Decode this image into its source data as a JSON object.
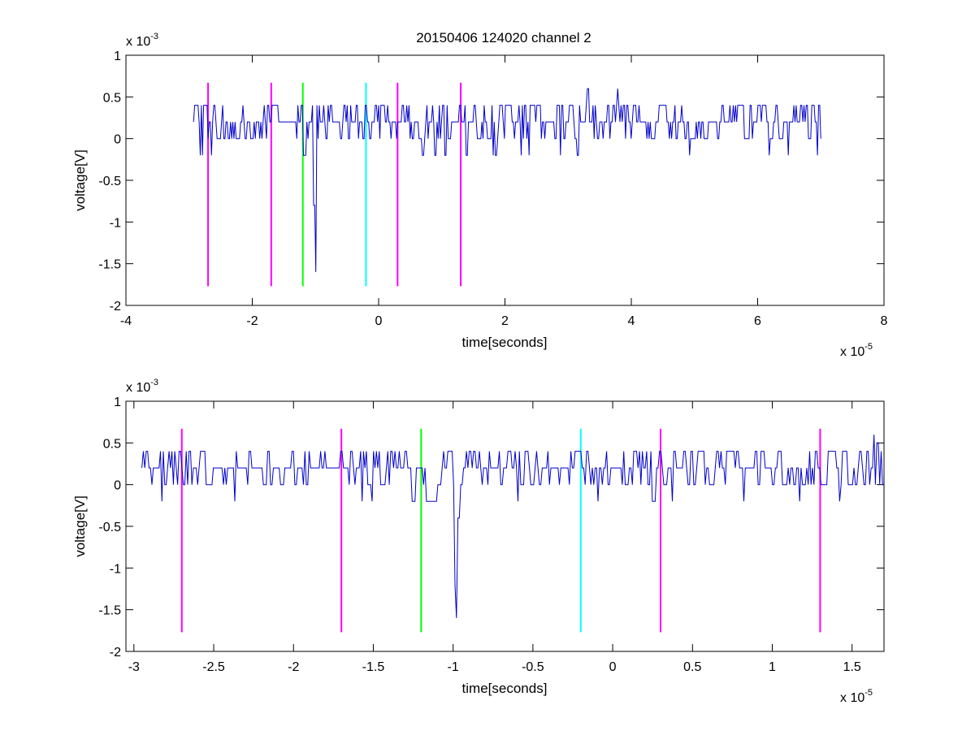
{
  "figure": {
    "title": "20150406 124020 channel 2"
  },
  "chart_data": [
    {
      "type": "line",
      "title": "20150406 124020 channel 2",
      "xlabel": "time[seconds]",
      "ylabel": "voltage[V]",
      "x_multiplier": "x 10",
      "x_exponent": "-5",
      "y_multiplier": "x 10",
      "y_exponent": "-3",
      "xlim": [
        -4e-05,
        8e-05
      ],
      "ylim": [
        -0.002,
        0.001
      ],
      "x_ticks": [
        -4e-05,
        -2e-05,
        0,
        2e-05,
        4e-05,
        6e-05,
        8e-05
      ],
      "x_tick_labels": [
        "-4",
        "-2",
        "0",
        "2",
        "4",
        "6",
        "8"
      ],
      "y_ticks": [
        0.001,
        0.0005,
        0,
        -0.0005,
        -0.001,
        -0.0015,
        -0.002
      ],
      "y_tick_labels": [
        "1",
        "0.5",
        "0",
        "-0.5",
        "-1",
        "-1.5",
        "-2"
      ],
      "grid": false,
      "signal": {
        "color": "#0000cc",
        "x_start": -2.93e-05,
        "x_end": 7e-05,
        "baseline": 0.0002,
        "noise_levels": [
          0,
          0.0002,
          0.0004
        ],
        "spikes": [
          {
            "x": -1e-05,
            "y": -0.0016
          },
          {
            "x": -1.02e-05,
            "y": -0.0008
          },
          {
            "x": -1.18e-05,
            "y": -0.0002
          },
          {
            "x": 3.78e-05,
            "y": 0.0006
          },
          {
            "x": 3.3e-05,
            "y": 0.0006
          }
        ]
      },
      "markers": [
        {
          "x": -2.7e-05,
          "color": "#ff00ff"
        },
        {
          "x": -1.7e-05,
          "color": "#ff00ff"
        },
        {
          "x": -1.2e-05,
          "color": "#00ff00"
        },
        {
          "x": -2e-06,
          "color": "#00ffff"
        },
        {
          "x": 3e-06,
          "color": "#ff00ff"
        },
        {
          "x": 1.3e-05,
          "color": "#ff00ff"
        }
      ],
      "marker_range": [
        -0.00177,
        0.00067
      ]
    },
    {
      "type": "line",
      "title": "",
      "xlabel": "time[seconds]",
      "ylabel": "voltage[V]",
      "x_multiplier": "x 10",
      "x_exponent": "-5",
      "y_multiplier": "x 10",
      "y_exponent": "-3",
      "xlim": [
        -3.05e-05,
        1.7e-05
      ],
      "ylim": [
        -0.002,
        0.001
      ],
      "x_ticks": [
        -3e-05,
        -2.5e-05,
        -2e-05,
        -1.5e-05,
        -1e-05,
        -5e-06,
        0,
        5e-06,
        1e-05,
        1.5e-05
      ],
      "x_tick_labels": [
        "-3",
        "-2.5",
        "-2",
        "-1.5",
        "-1",
        "-0.5",
        "0",
        "0.5",
        "1",
        "1.5"
      ],
      "y_ticks": [
        0.001,
        0.0005,
        0,
        -0.0005,
        -0.001,
        -0.0015,
        -0.002
      ],
      "y_tick_labels": [
        "1",
        "0.5",
        "0",
        "-0.5",
        "-1",
        "-1.5",
        "-2"
      ],
      "grid": false,
      "signal": {
        "color": "#0000cc",
        "x_start": -2.95e-05,
        "x_end": 1.7e-05,
        "baseline": 0.0002,
        "noise_levels": [
          0,
          0.0002,
          0.0004
        ],
        "spikes": [
          {
            "x": -9.8e-06,
            "y": -0.0016
          },
          {
            "x": -9.9e-06,
            "y": -0.0012
          },
          {
            "x": -9.7e-06,
            "y": -0.0004
          },
          {
            "x": -1.17e-05,
            "y": -0.0002
          },
          {
            "x": 1.64e-05,
            "y": 0.0006
          },
          {
            "x": 1.66e-05,
            "y": 0.0005
          }
        ]
      },
      "markers": [
        {
          "x": -2.7e-05,
          "color": "#ff00ff"
        },
        {
          "x": -1.7e-05,
          "color": "#ff00ff"
        },
        {
          "x": -1.2e-05,
          "color": "#00ff00"
        },
        {
          "x": -2e-06,
          "color": "#00ffff"
        },
        {
          "x": 3e-06,
          "color": "#ff00ff"
        },
        {
          "x": 1.3e-05,
          "color": "#ff00ff"
        }
      ],
      "marker_range": [
        -0.00177,
        0.00067
      ]
    }
  ]
}
